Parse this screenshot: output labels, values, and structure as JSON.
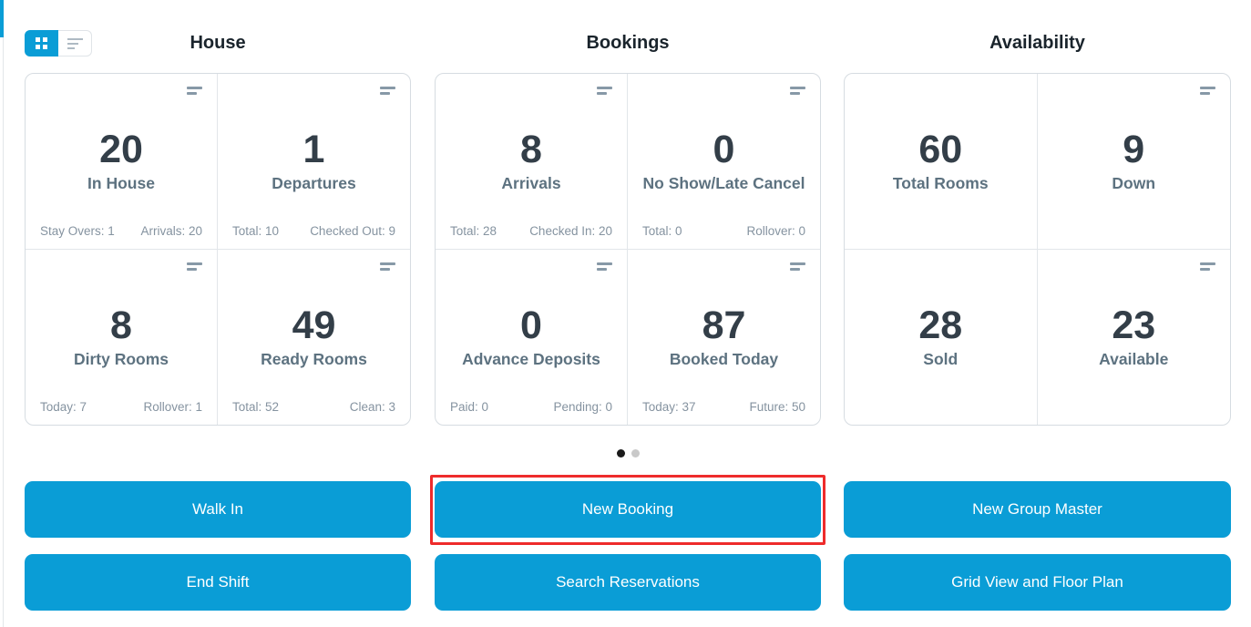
{
  "colors": {
    "accent_blue": "#0a9dd6",
    "annotation_red": "#ee2b2b",
    "heading_text": "#1a242c",
    "stat_value_text": "#333e48",
    "stat_label_text": "#5d7280",
    "stat_sub_text": "#8593a0"
  },
  "view_toggle": {
    "active_view": "grid",
    "buttons": [
      {
        "name": "grid",
        "icon": "grid-view-icon"
      },
      {
        "name": "list",
        "icon": "list-view-icon"
      }
    ]
  },
  "sections": [
    {
      "title": "House",
      "cards": [
        {
          "value": "20",
          "label": "In House",
          "sub_left": "Stay Overs: 1",
          "sub_right": "Arrivals: 20"
        },
        {
          "value": "1",
          "label": "Departures",
          "sub_left": "Total: 10",
          "sub_right": "Checked Out: 9"
        },
        {
          "value": "8",
          "label": "Dirty Rooms",
          "sub_left": "Today: 7",
          "sub_right": "Rollover: 1"
        },
        {
          "value": "49",
          "label": "Ready Rooms",
          "sub_left": "Total: 52",
          "sub_right": "Clean: 3"
        }
      ]
    },
    {
      "title": "Bookings",
      "cards": [
        {
          "value": "8",
          "label": "Arrivals",
          "sub_left": "Total: 28",
          "sub_right": "Checked In: 20"
        },
        {
          "value": "0",
          "label": "No Show/Late Cancel",
          "sub_left": "Total: 0",
          "sub_right": "Rollover: 0"
        },
        {
          "value": "0",
          "label": "Advance Deposits",
          "sub_left": "Paid: 0",
          "sub_right": "Pending: 0"
        },
        {
          "value": "87",
          "label": "Booked Today",
          "sub_left": "Today: 37",
          "sub_right": "Future: 50"
        }
      ]
    },
    {
      "title": "Availability",
      "cards": [
        {
          "value": "60",
          "label": "Total Rooms"
        },
        {
          "value": "9",
          "label": "Down"
        },
        {
          "value": "28",
          "label": "Sold"
        },
        {
          "value": "23",
          "label": "Available"
        }
      ]
    }
  ],
  "carousel": {
    "dot_count": 2,
    "active_index": 0
  },
  "buttons": {
    "walk_in": "Walk In",
    "new_booking": "New Booking",
    "new_group_master": "New Group Master",
    "end_shift": "End Shift",
    "search_reservations": "Search Reservations",
    "grid_view_floor_plan": "Grid View and Floor Plan"
  },
  "annotation": {
    "highlighted_button": "New Booking"
  }
}
